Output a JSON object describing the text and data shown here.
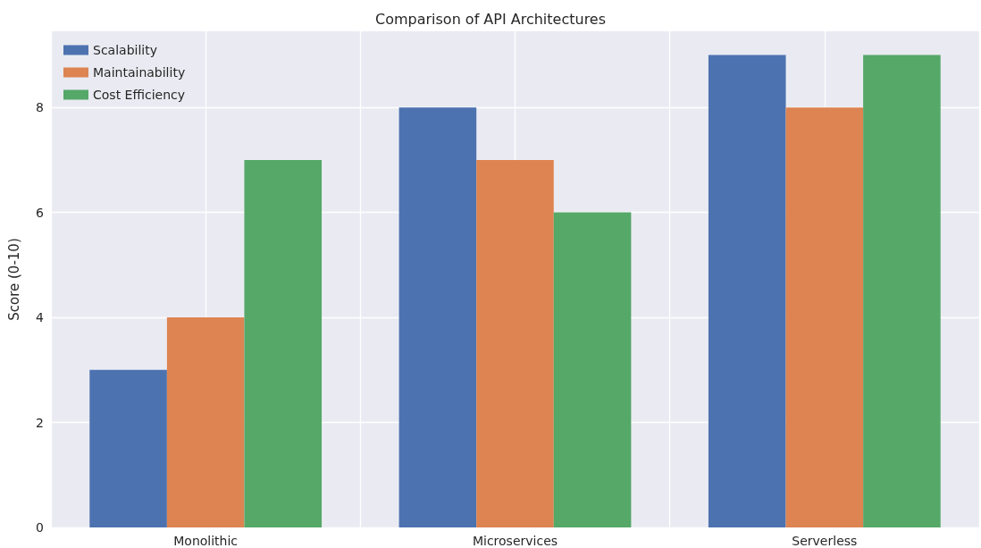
{
  "chart_data": {
    "type": "bar",
    "title": "Comparison of API Architectures",
    "ylabel": "Score (0-10)",
    "categories": [
      "Monolithic",
      "Microservices",
      "Serverless"
    ],
    "series": [
      {
        "name": "Scalability",
        "color": "#4c72b0",
        "values": [
          3,
          8,
          9
        ]
      },
      {
        "name": "Maintainability",
        "color": "#dd8452",
        "values": [
          4,
          7,
          8
        ]
      },
      {
        "name": "Cost Efficiency",
        "color": "#55a868",
        "values": [
          7,
          6,
          9
        ]
      }
    ],
    "ylim": [
      0,
      9.45
    ],
    "yticks": [
      0,
      2,
      4,
      6,
      8
    ],
    "grid": true,
    "legend": "top left"
  }
}
